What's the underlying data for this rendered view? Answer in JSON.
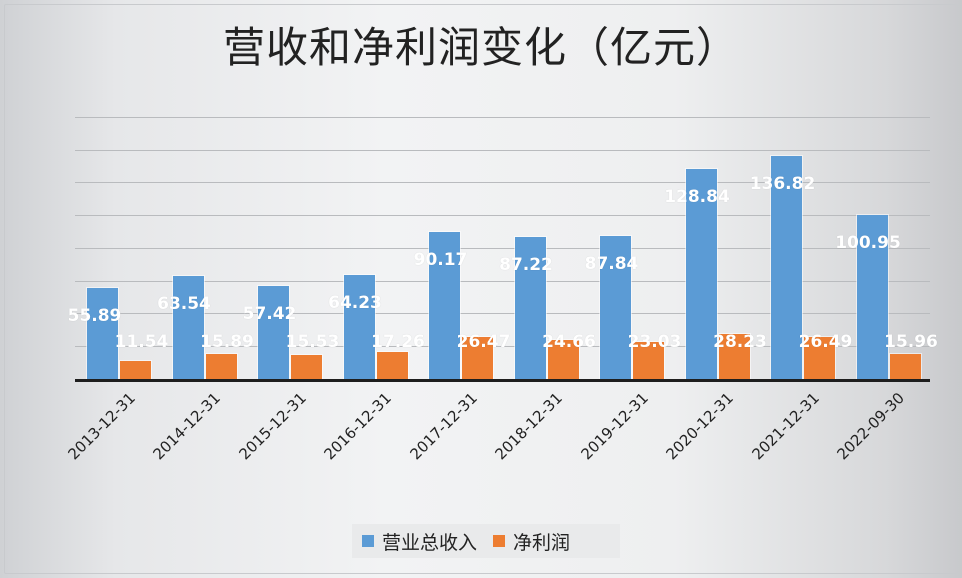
{
  "chart_data": {
    "type": "bar",
    "title": "营收和净利润变化（亿元）",
    "xlabel": "",
    "ylabel": "",
    "ylim": [
      0,
      160
    ],
    "grid": true,
    "legend_position": "bottom",
    "categories": [
      "2013-12-31",
      "2014-12-31",
      "2015-12-31",
      "2016-12-31",
      "2017-12-31",
      "2018-12-31",
      "2019-12-31",
      "2020-12-31",
      "2021-12-31",
      "2022-09-30"
    ],
    "series": [
      {
        "name": "营业总收入",
        "color": "#5b9bd5",
        "values": [
          55.89,
          63.54,
          57.42,
          64.23,
          90.17,
          87.22,
          87.84,
          128.84,
          136.82,
          100.95
        ]
      },
      {
        "name": "净利润",
        "color": "#ed7d31",
        "values": [
          11.54,
          15.89,
          15.53,
          17.26,
          26.47,
          24.66,
          23.03,
          28.23,
          26.49,
          15.96
        ]
      }
    ]
  },
  "legend": {
    "items": [
      {
        "label": "营业总收入",
        "color": "#5b9bd5"
      },
      {
        "label": "净利润",
        "color": "#ed7d31"
      }
    ]
  }
}
